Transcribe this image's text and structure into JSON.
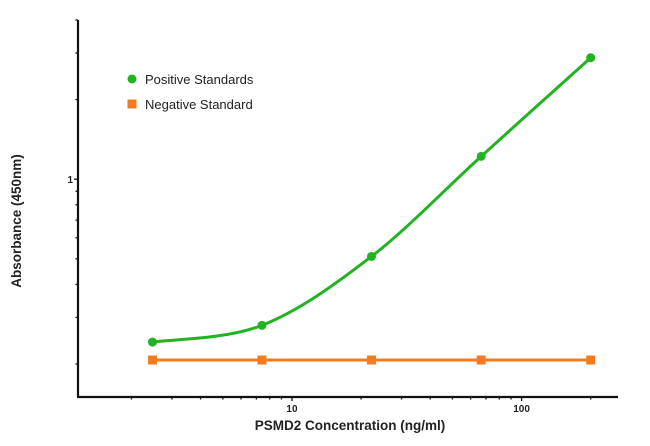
{
  "chart_data": {
    "type": "line",
    "title": "",
    "xlabel": "PSMD2 Concentration (ng/ml)",
    "ylabel": "Absorbance (450nm)",
    "x_scale": "log",
    "y_scale": "log",
    "xlim": [
      1.17,
      263
    ],
    "ylim": [
      0.15,
      4
    ],
    "x_ticks": [
      {
        "value": 10,
        "label": "10"
      },
      {
        "value": 100,
        "label": "100"
      }
    ],
    "y_ticks": [
      {
        "value": 1,
        "label": "1"
      }
    ],
    "grid": false,
    "legend_position": "top-left",
    "series": [
      {
        "name": "Positive Standards",
        "color": "#22b322",
        "marker": "circle",
        "fit": "sigmoidal curve",
        "x": [
          2.47,
          7.4,
          22.2,
          66.7,
          200
        ],
        "y": [
          0.242,
          0.28,
          0.51,
          1.22,
          2.88
        ]
      },
      {
        "name": "Negative Standard",
        "color": "#f47b20",
        "marker": "square",
        "fit": "line",
        "x": [
          2.47,
          7.4,
          22.2,
          66.7,
          200
        ],
        "y": [
          0.207,
          0.207,
          0.207,
          0.207,
          0.207
        ]
      }
    ]
  }
}
